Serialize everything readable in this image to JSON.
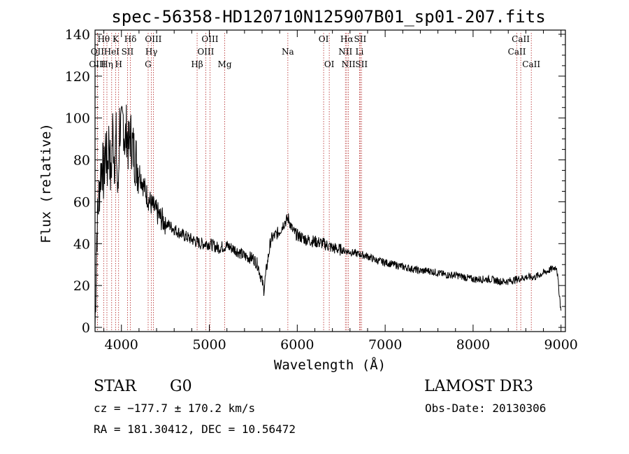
{
  "chart_data": {
    "type": "line",
    "title": "spec-56358-HD120710N125907B01_sp01-207.fits",
    "xlabel": "Wavelength (Å)",
    "ylabel": "Flux (relative)",
    "xlim": [
      3700,
      9050
    ],
    "ylim": [
      -2,
      142
    ],
    "xticks": [
      4000,
      5000,
      6000,
      7000,
      8000,
      9000
    ],
    "yticks": [
      0,
      20,
      40,
      60,
      80,
      100,
      120,
      140
    ],
    "series": [
      {
        "name": "flux",
        "x": [
          3700,
          3720,
          3740,
          3760,
          3780,
          3800,
          3820,
          3840,
          3860,
          3880,
          3900,
          3920,
          3940,
          3960,
          3980,
          4000,
          4020,
          4040,
          4060,
          4080,
          4100,
          4120,
          4150,
          4200,
          4250,
          4300,
          4350,
          4400,
          4450,
          4500,
          4600,
          4700,
          4800,
          4900,
          5000,
          5100,
          5200,
          5300,
          5400,
          5500,
          5550,
          5600,
          5620,
          5650,
          5700,
          5750,
          5800,
          5850,
          5900,
          5950,
          6000,
          6100,
          6200,
          6300,
          6400,
          6500,
          6600,
          6700,
          6800,
          6900,
          7000,
          7100,
          7200,
          7300,
          7400,
          7500,
          7600,
          7700,
          7800,
          7900,
          8000,
          8100,
          8200,
          8300,
          8400,
          8500,
          8600,
          8700,
          8800,
          8900,
          8950,
          9000
        ],
        "values": [
          0,
          45,
          60,
          72,
          80,
          70,
          88,
          75,
          92,
          68,
          95,
          80,
          90,
          60,
          98,
          92,
          100,
          88,
          95,
          85,
          92,
          88,
          82,
          75,
          68,
          62,
          58,
          55,
          52,
          50,
          47,
          44,
          42,
          40,
          40,
          38,
          39,
          37,
          34,
          33,
          30,
          22,
          18,
          28,
          42,
          44,
          46,
          50,
          52,
          46,
          44,
          42,
          41,
          40,
          38,
          37,
          36,
          35,
          34,
          32,
          31,
          30,
          29,
          28,
          27,
          27,
          26,
          25,
          25,
          24,
          23,
          23,
          23,
          22,
          22,
          23,
          24,
          24,
          26,
          28,
          29,
          8
        ]
      }
    ],
    "spectral_lines": [
      {
        "label": "Hθ",
        "wavelength": 3798,
        "row": 0
      },
      {
        "label": "K",
        "wavelength": 3934,
        "row": 0
      },
      {
        "label": "Hδ",
        "wavelength": 4102,
        "row": 0
      },
      {
        "label": "OII",
        "wavelength": 3727,
        "row": 1
      },
      {
        "label": "HeI",
        "wavelength": 3889,
        "row": 1
      },
      {
        "label": "SII",
        "wavelength": 4069,
        "row": 1
      },
      {
        "label": "OIII",
        "wavelength": 3727,
        "row": 2
      },
      {
        "label": "Hη",
        "wavelength": 3835,
        "row": 2
      },
      {
        "label": "H",
        "wavelength": 3968,
        "row": 2
      },
      {
        "label": "OIII",
        "wavelength": 4363,
        "row": 0
      },
      {
        "label": "Hγ",
        "wavelength": 4341,
        "row": 1
      },
      {
        "label": "G",
        "wavelength": 4304,
        "row": 2
      },
      {
        "label": "OIII",
        "wavelength": 5007,
        "row": 0
      },
      {
        "label": "OIII",
        "wavelength": 4959,
        "row": 1
      },
      {
        "label": "Hβ",
        "wavelength": 4861,
        "row": 2
      },
      {
        "label": "Mg",
        "wavelength": 5175,
        "row": 2
      },
      {
        "label": "Na",
        "wavelength": 5893,
        "row": 1
      },
      {
        "label": "OI",
        "wavelength": 6300,
        "row": 0
      },
      {
        "label": "OI",
        "wavelength": 6364,
        "row": 2
      },
      {
        "label": "Hα",
        "wavelength": 6563,
        "row": 0
      },
      {
        "label": "SII",
        "wavelength": 6716,
        "row": 0
      },
      {
        "label": "NII",
        "wavelength": 6548,
        "row": 1
      },
      {
        "label": "Li",
        "wavelength": 6708,
        "row": 1
      },
      {
        "label": "NII",
        "wavelength": 6583,
        "row": 2
      },
      {
        "label": "SII",
        "wavelength": 6731,
        "row": 2
      },
      {
        "label": "CaII",
        "wavelength": 8542,
        "row": 0
      },
      {
        "label": "CaII",
        "wavelength": 8498,
        "row": 1
      },
      {
        "label": "CaII",
        "wavelength": 8662,
        "row": 2
      }
    ]
  },
  "info": {
    "class": "STAR",
    "subclass": "G0",
    "survey": "LAMOST DR3",
    "cz": "cz = −177.7 ± 170.2 km/s",
    "obs_date": "Obs-Date: 20130306",
    "coords": "RA = 181.30412, DEC =  10.56472"
  }
}
